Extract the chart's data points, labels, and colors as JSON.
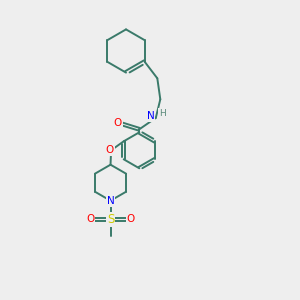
{
  "bg_color": "#eeeeee",
  "atom_colors": {
    "C": "#3a7a6a",
    "N": "#0000ff",
    "O": "#ff0000",
    "S": "#cccc00",
    "H": "#5a8a7a"
  },
  "bond_color": "#3a7a6a",
  "figsize": [
    3.0,
    3.0
  ],
  "dpi": 100
}
